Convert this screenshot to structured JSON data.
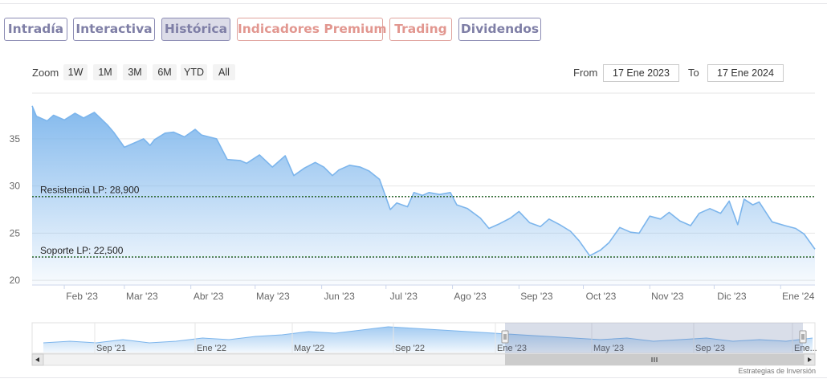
{
  "tabs": [
    {
      "label": "Intradía",
      "active": false,
      "premium": false
    },
    {
      "label": "Interactiva",
      "active": false,
      "premium": false
    },
    {
      "label": "Histórica",
      "active": true,
      "premium": false
    },
    {
      "label": "Indicadores Premium",
      "active": false,
      "premium": true
    },
    {
      "label": "Trading",
      "active": false,
      "premium": true
    },
    {
      "label": "Dividendos",
      "active": false,
      "premium": false
    }
  ],
  "toolbar": {
    "zoom_label": "Zoom",
    "zoom_buttons": [
      "1W",
      "1M",
      "3M",
      "6M",
      "YTD",
      "All"
    ],
    "from_label": "From",
    "from_value": "17 Ene 2023",
    "to_label": "To",
    "to_value": "17 Ene 2024"
  },
  "colors": {
    "tab_border": "#8c8cb4",
    "tab_text": "#7f7fa6",
    "premium": "#e29790",
    "line": "#7cb5ec",
    "level": "#2e8b57"
  },
  "credit": "Estrategias de Inversión",
  "chart_data": {
    "type": "area",
    "x": [
      "2023-01-17",
      "2023-01-19",
      "2023-01-24",
      "2023-01-27",
      "2023-02-01",
      "2023-02-06",
      "2023-02-10",
      "2023-02-15",
      "2023-02-21",
      "2023-02-24",
      "2023-03-01",
      "2023-03-06",
      "2023-03-10",
      "2023-03-13",
      "2023-03-15",
      "2023-03-20",
      "2023-03-24",
      "2023-03-29",
      "2023-04-03",
      "2023-04-06",
      "2023-04-13",
      "2023-04-18",
      "2023-04-24",
      "2023-04-27",
      "2023-05-03",
      "2023-05-09",
      "2023-05-15",
      "2023-05-19",
      "2023-05-24",
      "2023-05-29",
      "2023-06-02",
      "2023-06-06",
      "2023-06-09",
      "2023-06-14",
      "2023-06-19",
      "2023-06-23",
      "2023-06-28",
      "2023-07-03",
      "2023-07-06",
      "2023-07-11",
      "2023-07-14",
      "2023-07-18",
      "2023-07-21",
      "2023-07-26",
      "2023-07-31",
      "2023-08-03",
      "2023-08-08",
      "2023-08-14",
      "2023-08-18",
      "2023-08-23",
      "2023-08-28",
      "2023-09-01",
      "2023-09-06",
      "2023-09-11",
      "2023-09-15",
      "2023-09-20",
      "2023-09-25",
      "2023-09-29",
      "2023-10-04",
      "2023-10-09",
      "2023-10-13",
      "2023-10-18",
      "2023-10-23",
      "2023-10-27",
      "2023-11-01",
      "2023-11-06",
      "2023-11-10",
      "2023-11-15",
      "2023-11-20",
      "2023-11-24",
      "2023-11-29",
      "2023-12-04",
      "2023-12-08",
      "2023-12-12",
      "2023-12-15",
      "2023-12-19",
      "2023-12-22",
      "2023-12-28",
      "2024-01-03",
      "2024-01-08",
      "2024-01-12",
      "2024-01-17"
    ],
    "y": [
      38.5,
      37.4,
      36.9,
      37.5,
      37.0,
      37.7,
      37.2,
      37.8,
      36.5,
      35.7,
      34.1,
      34.6,
      35.0,
      34.3,
      34.9,
      35.6,
      35.7,
      35.2,
      36.0,
      35.4,
      35.0,
      32.8,
      32.7,
      32.4,
      33.3,
      32.0,
      33.2,
      31.1,
      31.9,
      32.5,
      32.0,
      31.1,
      31.7,
      32.2,
      32.0,
      31.6,
      30.7,
      27.5,
      28.2,
      27.8,
      29.3,
      29.0,
      29.3,
      29.1,
      29.3,
      28.0,
      27.6,
      26.6,
      25.5,
      26.0,
      26.6,
      27.3,
      26.1,
      25.7,
      26.5,
      25.9,
      25.2,
      24.2,
      22.6,
      23.2,
      24.0,
      25.6,
      25.1,
      25.0,
      26.8,
      26.5,
      27.2,
      26.3,
      25.8,
      27.1,
      27.6,
      27.1,
      28.4,
      25.9,
      28.6,
      28.0,
      28.3,
      26.2,
      25.8,
      25.5,
      24.9,
      23.3
    ],
    "ylim": [
      19.5,
      39.5
    ],
    "y_ticks": [
      "20",
      "25",
      "30",
      "35"
    ],
    "x_ticks": [
      {
        "date": "2023-02-01",
        "label": "Feb '23"
      },
      {
        "date": "2023-03-01",
        "label": "Mar '23"
      },
      {
        "date": "2023-04-01",
        "label": "Abr '23"
      },
      {
        "date": "2023-05-01",
        "label": "May '23"
      },
      {
        "date": "2023-06-01",
        "label": "Jun '23"
      },
      {
        "date": "2023-07-01",
        "label": "Jul '23"
      },
      {
        "date": "2023-08-01",
        "label": "Ago '23"
      },
      {
        "date": "2023-09-01",
        "label": "Sep '23"
      },
      {
        "date": "2023-10-01",
        "label": "Oct '23"
      },
      {
        "date": "2023-11-01",
        "label": "Nov '23"
      },
      {
        "date": "2023-12-01",
        "label": "Dic '23"
      },
      {
        "date": "2024-01-01",
        "label": "Ene '24"
      }
    ],
    "grid": true,
    "levels": [
      {
        "label": "Resistencia LP: 28,900",
        "value": 28.9
      },
      {
        "label": "Soporte LP: 22,500",
        "value": 22.5
      }
    ],
    "navigator": {
      "x_labels": [
        "Sep '21",
        "Ene '22",
        "May '22",
        "Sep '22",
        "Ene '23",
        "May '23",
        "Sep '23",
        "Ene..."
      ],
      "values": [
        28,
        29,
        28,
        30,
        28,
        29,
        31,
        30,
        32,
        33,
        35,
        34,
        36,
        38,
        37,
        36,
        35,
        34,
        33,
        32,
        31,
        30,
        31,
        29,
        30,
        31,
        29,
        30,
        29,
        31
      ]
    }
  }
}
